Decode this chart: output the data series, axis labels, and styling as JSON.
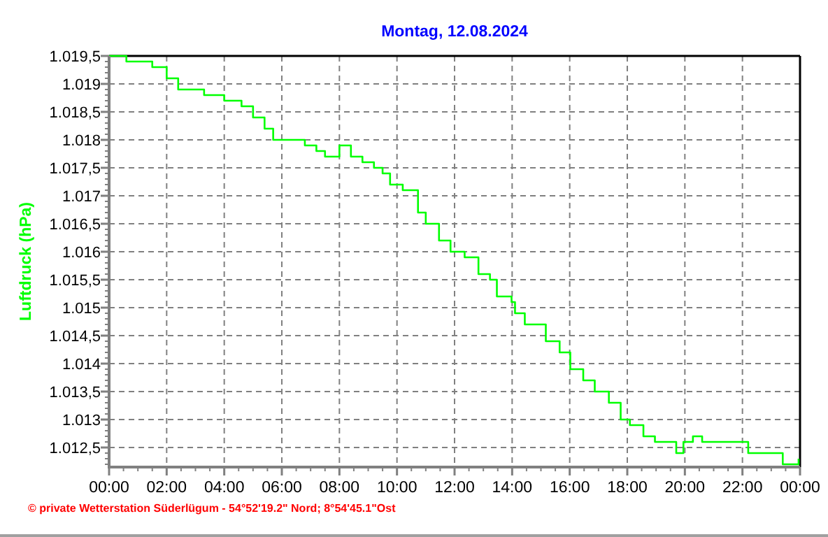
{
  "chart_data": {
    "type": "step",
    "title": "Montag, 12.08.2024",
    "ylabel": "Luftdruck (hPa)",
    "annotations": [
      "© private Wetterstation Süderlügum - 54°52'19.2\" Nord; 8°54'45.1\"Ost"
    ],
    "x": [
      0,
      0.6,
      1.5,
      2.0,
      2.4,
      3.3,
      4.0,
      4.6,
      5.0,
      5.4,
      5.7,
      6.8,
      7.2,
      7.5,
      8.0,
      8.4,
      8.8,
      9.2,
      9.5,
      9.76,
      10.2,
      10.73,
      11.0,
      11.46,
      11.86,
      12.35,
      12.83,
      13.23,
      13.47,
      13.98,
      14.1,
      14.44,
      14.93,
      15.17,
      15.65,
      16.02,
      16.47,
      16.87,
      17.36,
      17.77,
      18.09,
      18.56,
      18.96,
      19.7,
      19.95,
      20.28,
      20.6,
      21.4,
      21.9,
      22.2,
      23.0,
      23.4,
      23.95
    ],
    "series": [
      {
        "color": "#00ff00",
        "values": [
          1019.5,
          1019.4,
          1019.3,
          1019.1,
          1018.9,
          1018.8,
          1018.7,
          1018.6,
          1018.4,
          1018.2,
          1018.0,
          1017.9,
          1017.8,
          1017.7,
          1017.9,
          1017.7,
          1017.6,
          1017.5,
          1017.4,
          1017.2,
          1017.1,
          1016.7,
          1016.5,
          1016.2,
          1016.0,
          1015.9,
          1015.6,
          1015.5,
          1015.2,
          1015.1,
          1014.9,
          1014.7,
          1014.7,
          1014.4,
          1014.2,
          1013.9,
          1013.7,
          1013.5,
          1013.3,
          1013.0,
          1012.9,
          1012.7,
          1012.6,
          1012.4,
          1012.6,
          1012.7,
          1012.6,
          1012.6,
          1012.6,
          1012.4,
          1012.4,
          1012.2,
          1012.3
        ]
      }
    ],
    "xlim": [
      0,
      24
    ],
    "xticks": [
      {
        "value": 0,
        "label": "00:00"
      },
      {
        "value": 2,
        "label": "02:00"
      },
      {
        "value": 4,
        "label": "04:00"
      },
      {
        "value": 6,
        "label": "06:00"
      },
      {
        "value": 8,
        "label": "08:00"
      },
      {
        "value": 10,
        "label": "10:00"
      },
      {
        "value": 12,
        "label": "12:00"
      },
      {
        "value": 14,
        "label": "14:00"
      },
      {
        "value": 16,
        "label": "16:00"
      },
      {
        "value": 18,
        "label": "18:00"
      },
      {
        "value": 20,
        "label": "20:00"
      },
      {
        "value": 22,
        "label": "22:00"
      },
      {
        "value": 24,
        "label": "00:00"
      }
    ],
    "ylim": [
      1012.15,
      1019.5
    ],
    "yticks": [
      {
        "value": 1012.5,
        "label": "1.012,5"
      },
      {
        "value": 1013,
        "label": "1.013"
      },
      {
        "value": 1013.5,
        "label": "1.013,5"
      },
      {
        "value": 1014,
        "label": "1.014"
      },
      {
        "value": 1014.5,
        "label": "1.014,5"
      },
      {
        "value": 1015,
        "label": "1.015"
      },
      {
        "value": 1015.5,
        "label": "1.015,5"
      },
      {
        "value": 1016,
        "label": "1.016"
      },
      {
        "value": 1016.5,
        "label": "1.016,5"
      },
      {
        "value": 1017,
        "label": "1.017"
      },
      {
        "value": 1017.5,
        "label": "1.017,5"
      },
      {
        "value": 1018,
        "label": "1.018"
      },
      {
        "value": 1018.5,
        "label": "1.018,5"
      },
      {
        "value": 1019,
        "label": "1.019"
      },
      {
        "value": 1019.5,
        "label": "1.019,5"
      }
    ],
    "grid": true,
    "line_style": "solid",
    "marker": "none"
  }
}
